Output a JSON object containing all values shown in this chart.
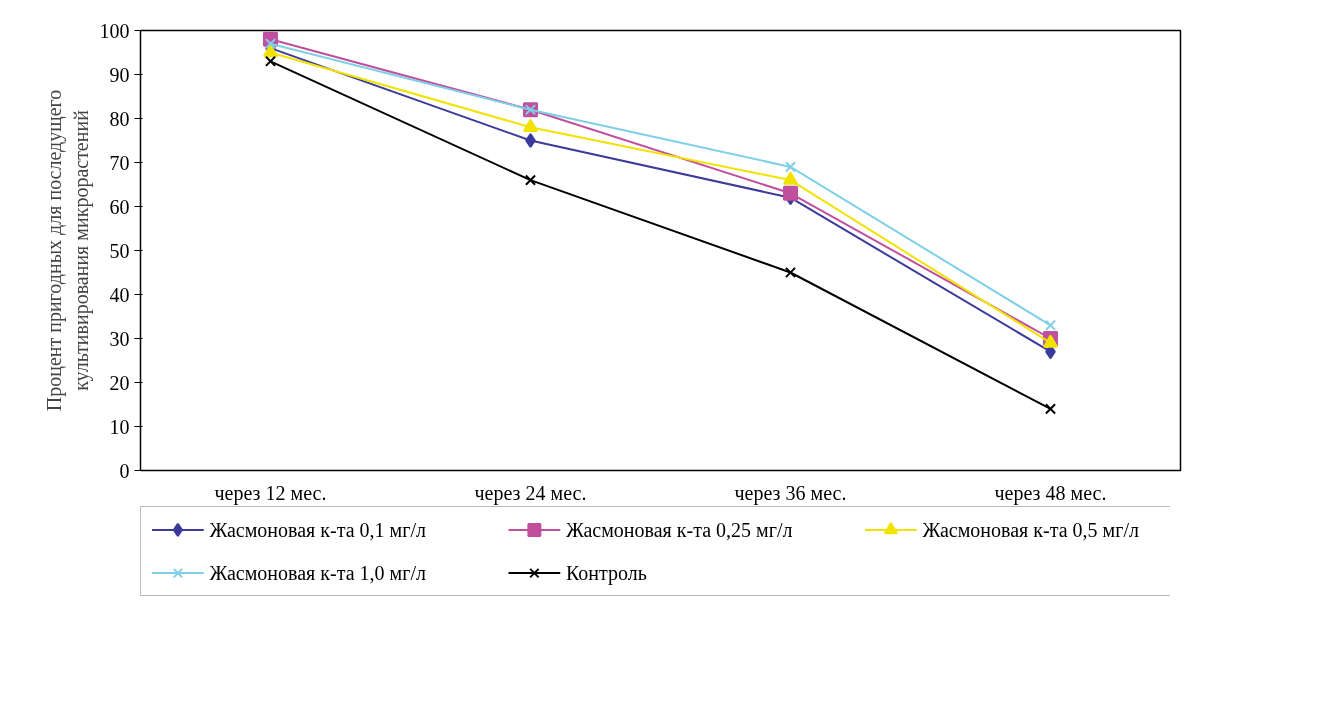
{
  "chart_data": {
    "type": "line",
    "ylabel": "Процент пригодных для последущего\nкультивирования микрорастений",
    "categories": [
      "через 12 мес.",
      "через 24 мес.",
      "через 36 мес.",
      "через 48 мес."
    ],
    "ylim": [
      0,
      100
    ],
    "yticks": [
      0,
      10,
      20,
      30,
      40,
      50,
      60,
      70,
      80,
      90,
      100
    ],
    "grid": false,
    "legend": "bottom",
    "series": [
      {
        "name": "Жасмоновая к-та 0,1 мг/л",
        "color": "#3b3b9c",
        "marker": "diamond",
        "values": [
          96,
          75,
          62,
          27
        ]
      },
      {
        "name": "Жасмоновая к-та 0,25 мг/л",
        "color": "#c0509e",
        "marker": "square",
        "values": [
          98,
          82,
          63,
          30
        ]
      },
      {
        "name": "Жасмоновая к-та 0,5 мг/л",
        "color": "#f2e200",
        "marker": "triangle",
        "values": [
          95,
          78,
          66,
          29
        ]
      },
      {
        "name": "Жасмоновая к-та 1,0 мг/л",
        "color": "#7fd0e6",
        "marker": "cross",
        "values": [
          97,
          82,
          69,
          33
        ]
      },
      {
        "name": "Контроль",
        "color": "#000000",
        "marker": "cross",
        "values": [
          93,
          66,
          45,
          14
        ]
      }
    ]
  }
}
